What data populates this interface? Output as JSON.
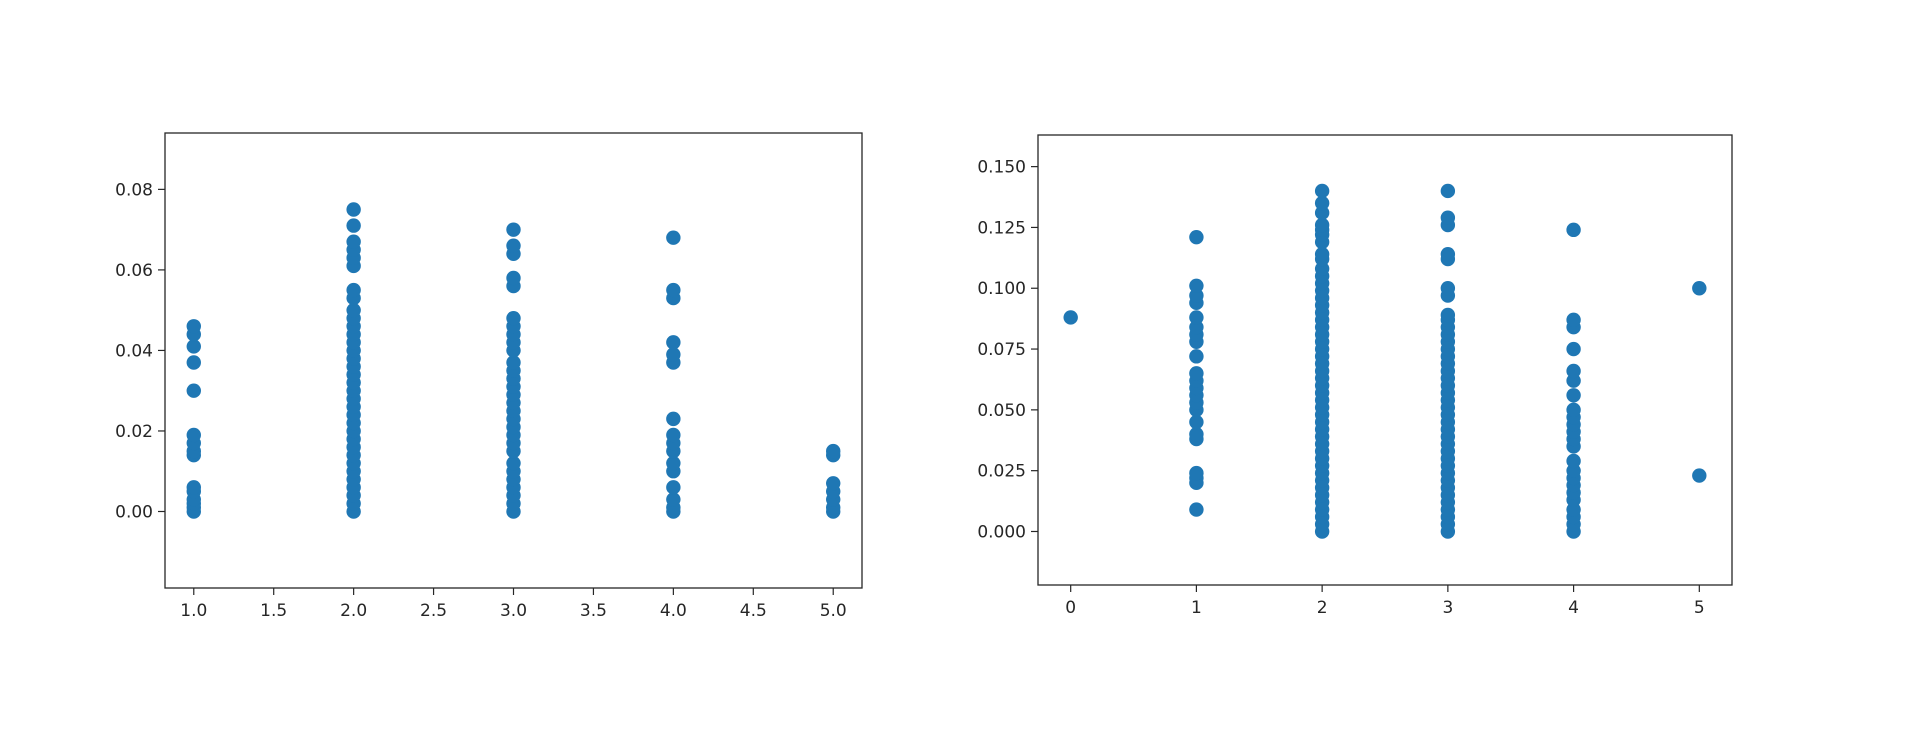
{
  "figure": {
    "background": "#ffffff"
  },
  "chart_data": [
    {
      "type": "scatter",
      "title": "",
      "xlabel": "",
      "ylabel": "",
      "xlim": [
        0.82,
        5.18
      ],
      "ylim": [
        -0.019,
        0.094
      ],
      "x_ticks": [
        1.0,
        1.5,
        2.0,
        2.5,
        3.0,
        3.5,
        4.0,
        4.5,
        5.0
      ],
      "x_tick_labels": [
        "1.0",
        "1.5",
        "2.0",
        "2.5",
        "3.0",
        "3.5",
        "4.0",
        "4.5",
        "5.0"
      ],
      "y_ticks": [
        0.0,
        0.02,
        0.04,
        0.06,
        0.08
      ],
      "y_tick_labels": [
        "0.00",
        "0.02",
        "0.04",
        "0.06",
        "0.08"
      ],
      "grid": false,
      "legend": null,
      "marker_color": "#1f77b4",
      "points": [
        [
          1,
          0.0
        ],
        [
          1,
          0.001
        ],
        [
          1,
          0.002
        ],
        [
          1,
          0.003
        ],
        [
          1,
          0.005
        ],
        [
          1,
          0.006
        ],
        [
          1,
          0.014
        ],
        [
          1,
          0.015
        ],
        [
          1,
          0.017
        ],
        [
          1,
          0.019
        ],
        [
          1,
          0.03
        ],
        [
          1,
          0.037
        ],
        [
          1,
          0.041
        ],
        [
          1,
          0.044
        ],
        [
          1,
          0.046
        ],
        [
          2,
          0.0
        ],
        [
          2,
          0.002
        ],
        [
          2,
          0.004
        ],
        [
          2,
          0.006
        ],
        [
          2,
          0.008
        ],
        [
          2,
          0.01
        ],
        [
          2,
          0.012
        ],
        [
          2,
          0.014
        ],
        [
          2,
          0.016
        ],
        [
          2,
          0.018
        ],
        [
          2,
          0.02
        ],
        [
          2,
          0.022
        ],
        [
          2,
          0.024
        ],
        [
          2,
          0.026
        ],
        [
          2,
          0.028
        ],
        [
          2,
          0.03
        ],
        [
          2,
          0.032
        ],
        [
          2,
          0.034
        ],
        [
          2,
          0.036
        ],
        [
          2,
          0.038
        ],
        [
          2,
          0.04
        ],
        [
          2,
          0.042
        ],
        [
          2,
          0.044
        ],
        [
          2,
          0.046
        ],
        [
          2,
          0.048
        ],
        [
          2,
          0.05
        ],
        [
          2,
          0.053
        ],
        [
          2,
          0.055
        ],
        [
          2,
          0.061
        ],
        [
          2,
          0.063
        ],
        [
          2,
          0.065
        ],
        [
          2,
          0.067
        ],
        [
          2,
          0.071
        ],
        [
          2,
          0.075
        ],
        [
          3,
          0.0
        ],
        [
          3,
          0.002
        ],
        [
          3,
          0.004
        ],
        [
          3,
          0.006
        ],
        [
          3,
          0.008
        ],
        [
          3,
          0.01
        ],
        [
          3,
          0.012
        ],
        [
          3,
          0.015
        ],
        [
          3,
          0.017
        ],
        [
          3,
          0.019
        ],
        [
          3,
          0.021
        ],
        [
          3,
          0.023
        ],
        [
          3,
          0.025
        ],
        [
          3,
          0.027
        ],
        [
          3,
          0.029
        ],
        [
          3,
          0.031
        ],
        [
          3,
          0.033
        ],
        [
          3,
          0.035
        ],
        [
          3,
          0.037
        ],
        [
          3,
          0.04
        ],
        [
          3,
          0.042
        ],
        [
          3,
          0.044
        ],
        [
          3,
          0.046
        ],
        [
          3,
          0.048
        ],
        [
          3,
          0.056
        ],
        [
          3,
          0.058
        ],
        [
          3,
          0.064
        ],
        [
          3,
          0.066
        ],
        [
          3,
          0.07
        ],
        [
          4,
          0.0
        ],
        [
          4,
          0.001
        ],
        [
          4,
          0.003
        ],
        [
          4,
          0.006
        ],
        [
          4,
          0.01
        ],
        [
          4,
          0.012
        ],
        [
          4,
          0.015
        ],
        [
          4,
          0.017
        ],
        [
          4,
          0.019
        ],
        [
          4,
          0.023
        ],
        [
          4,
          0.037
        ],
        [
          4,
          0.039
        ],
        [
          4,
          0.042
        ],
        [
          4,
          0.053
        ],
        [
          4,
          0.055
        ],
        [
          4,
          0.068
        ],
        [
          5,
          0.0
        ],
        [
          5,
          0.001
        ],
        [
          5,
          0.003
        ],
        [
          5,
          0.005
        ],
        [
          5,
          0.007
        ],
        [
          5,
          0.014
        ],
        [
          5,
          0.015
        ]
      ]
    },
    {
      "type": "scatter",
      "title": "",
      "xlabel": "",
      "ylabel": "",
      "xlim": [
        -0.26,
        5.26
      ],
      "ylim": [
        -0.022,
        0.163
      ],
      "x_ticks": [
        0,
        1,
        2,
        3,
        4,
        5
      ],
      "x_tick_labels": [
        "0",
        "1",
        "2",
        "3",
        "4",
        "5"
      ],
      "y_ticks": [
        0.0,
        0.025,
        0.05,
        0.075,
        0.1,
        0.125,
        0.15
      ],
      "y_tick_labels": [
        "0.000",
        "0.025",
        "0.050",
        "0.075",
        "0.100",
        "0.125",
        "0.150"
      ],
      "grid": false,
      "legend": null,
      "marker_color": "#1f77b4",
      "points": [
        [
          0,
          0.088
        ],
        [
          1,
          0.009
        ],
        [
          1,
          0.02
        ],
        [
          1,
          0.022
        ],
        [
          1,
          0.024
        ],
        [
          1,
          0.038
        ],
        [
          1,
          0.04
        ],
        [
          1,
          0.045
        ],
        [
          1,
          0.05
        ],
        [
          1,
          0.053
        ],
        [
          1,
          0.056
        ],
        [
          1,
          0.059
        ],
        [
          1,
          0.062
        ],
        [
          1,
          0.065
        ],
        [
          1,
          0.072
        ],
        [
          1,
          0.078
        ],
        [
          1,
          0.081
        ],
        [
          1,
          0.084
        ],
        [
          1,
          0.088
        ],
        [
          1,
          0.094
        ],
        [
          1,
          0.097
        ],
        [
          1,
          0.101
        ],
        [
          1,
          0.121
        ],
        [
          2,
          0.0
        ],
        [
          2,
          0.003
        ],
        [
          2,
          0.006
        ],
        [
          2,
          0.009
        ],
        [
          2,
          0.012
        ],
        [
          2,
          0.015
        ],
        [
          2,
          0.018
        ],
        [
          2,
          0.021
        ],
        [
          2,
          0.024
        ],
        [
          2,
          0.027
        ],
        [
          2,
          0.03
        ],
        [
          2,
          0.033
        ],
        [
          2,
          0.036
        ],
        [
          2,
          0.039
        ],
        [
          2,
          0.042
        ],
        [
          2,
          0.045
        ],
        [
          2,
          0.048
        ],
        [
          2,
          0.051
        ],
        [
          2,
          0.054
        ],
        [
          2,
          0.057
        ],
        [
          2,
          0.06
        ],
        [
          2,
          0.063
        ],
        [
          2,
          0.066
        ],
        [
          2,
          0.069
        ],
        [
          2,
          0.072
        ],
        [
          2,
          0.075
        ],
        [
          2,
          0.078
        ],
        [
          2,
          0.081
        ],
        [
          2,
          0.084
        ],
        [
          2,
          0.087
        ],
        [
          2,
          0.09
        ],
        [
          2,
          0.093
        ],
        [
          2,
          0.096
        ],
        [
          2,
          0.099
        ],
        [
          2,
          0.102
        ],
        [
          2,
          0.105
        ],
        [
          2,
          0.108
        ],
        [
          2,
          0.112
        ],
        [
          2,
          0.114
        ],
        [
          2,
          0.119
        ],
        [
          2,
          0.122
        ],
        [
          2,
          0.124
        ],
        [
          2,
          0.126
        ],
        [
          2,
          0.131
        ],
        [
          2,
          0.135
        ],
        [
          2,
          0.14
        ],
        [
          3,
          0.0
        ],
        [
          3,
          0.003
        ],
        [
          3,
          0.006
        ],
        [
          3,
          0.009
        ],
        [
          3,
          0.012
        ],
        [
          3,
          0.015
        ],
        [
          3,
          0.018
        ],
        [
          3,
          0.021
        ],
        [
          3,
          0.024
        ],
        [
          3,
          0.027
        ],
        [
          3,
          0.03
        ],
        [
          3,
          0.033
        ],
        [
          3,
          0.036
        ],
        [
          3,
          0.039
        ],
        [
          3,
          0.042
        ],
        [
          3,
          0.045
        ],
        [
          3,
          0.048
        ],
        [
          3,
          0.051
        ],
        [
          3,
          0.054
        ],
        [
          3,
          0.057
        ],
        [
          3,
          0.06
        ],
        [
          3,
          0.063
        ],
        [
          3,
          0.066
        ],
        [
          3,
          0.069
        ],
        [
          3,
          0.072
        ],
        [
          3,
          0.075
        ],
        [
          3,
          0.078
        ],
        [
          3,
          0.081
        ],
        [
          3,
          0.084
        ],
        [
          3,
          0.087
        ],
        [
          3,
          0.089
        ],
        [
          3,
          0.097
        ],
        [
          3,
          0.1
        ],
        [
          3,
          0.112
        ],
        [
          3,
          0.114
        ],
        [
          3,
          0.126
        ],
        [
          3,
          0.129
        ],
        [
          3,
          0.14
        ],
        [
          4,
          0.0
        ],
        [
          4,
          0.003
        ],
        [
          4,
          0.006
        ],
        [
          4,
          0.009
        ],
        [
          4,
          0.013
        ],
        [
          4,
          0.016
        ],
        [
          4,
          0.019
        ],
        [
          4,
          0.022
        ],
        [
          4,
          0.025
        ],
        [
          4,
          0.029
        ],
        [
          4,
          0.035
        ],
        [
          4,
          0.038
        ],
        [
          4,
          0.041
        ],
        [
          4,
          0.044
        ],
        [
          4,
          0.047
        ],
        [
          4,
          0.05
        ],
        [
          4,
          0.056
        ],
        [
          4,
          0.062
        ],
        [
          4,
          0.066
        ],
        [
          4,
          0.075
        ],
        [
          4,
          0.084
        ],
        [
          4,
          0.087
        ],
        [
          4,
          0.124
        ],
        [
          5,
          0.023
        ],
        [
          5,
          0.1
        ]
      ]
    }
  ]
}
